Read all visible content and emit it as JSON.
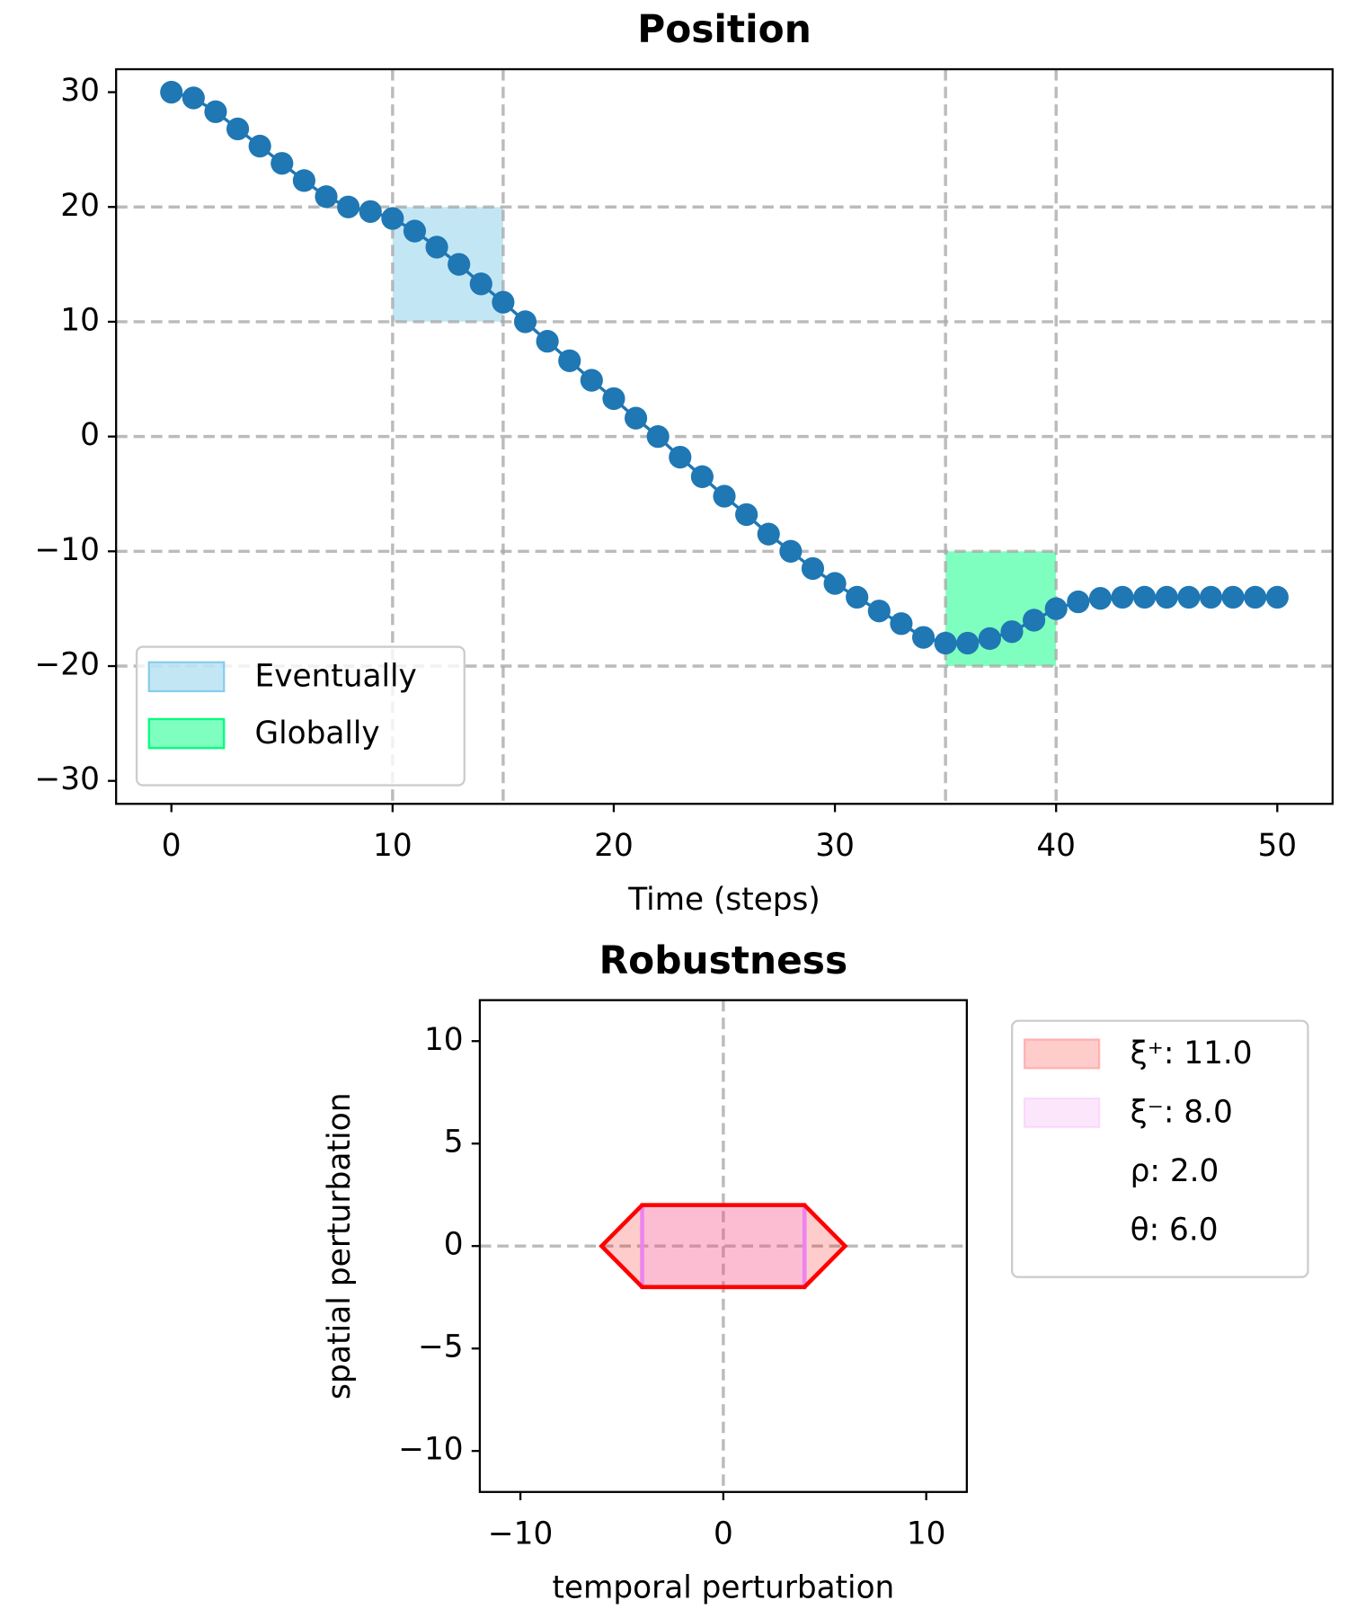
{
  "chart_data": [
    {
      "type": "line",
      "title": "Position",
      "xlabel": "Time (steps)",
      "x": [
        0,
        1,
        2,
        3,
        4,
        5,
        6,
        7,
        8,
        9,
        10,
        11,
        12,
        13,
        14,
        15,
        16,
        17,
        18,
        19,
        20,
        21,
        22,
        23,
        24,
        25,
        26,
        27,
        28,
        29,
        30,
        31,
        32,
        33,
        34,
        35,
        36,
        37,
        38,
        39,
        40,
        41,
        42,
        43,
        44,
        45,
        46,
        47,
        48,
        49,
        50
      ],
      "series": [
        {
          "color": "#1f77b4",
          "values": [
            30,
            29.5,
            28.3,
            26.8,
            25.3,
            23.8,
            22.3,
            20.9,
            20.0,
            19.6,
            19.0,
            17.9,
            16.5,
            15.0,
            13.3,
            11.7,
            10.0,
            8.3,
            6.6,
            4.9,
            3.3,
            1.6,
            0.0,
            -1.8,
            -3.5,
            -5.2,
            -6.8,
            -8.5,
            -10.0,
            -11.5,
            -12.8,
            -14.0,
            -15.2,
            -16.3,
            -17.5,
            -18.0,
            -18.0,
            -17.6,
            -17.0,
            -16.0,
            -15.0,
            -14.4,
            -14.1,
            -14.0,
            -14.0,
            -14.0,
            -14.0,
            -14.0,
            -14.0,
            -14.0,
            -14.0
          ]
        }
      ],
      "regions": [
        {
          "name": "Eventually",
          "color": "#87ceeb",
          "x": [
            10,
            15
          ],
          "y": [
            10,
            20
          ]
        },
        {
          "name": "Globally",
          "color": "#00ff7f",
          "x": [
            35,
            40
          ],
          "y": [
            -20,
            -10
          ]
        }
      ],
      "vlines": [
        10,
        15,
        35,
        40
      ],
      "hlines": [
        -20,
        -10,
        0,
        10,
        20
      ],
      "xlim": [
        -2.5,
        52.5
      ],
      "ylim": [
        -32,
        32
      ],
      "xticks": [
        0,
        10,
        20,
        30,
        40,
        50
      ],
      "yticks": [
        {
          "value": -30,
          "label": "−30"
        },
        {
          "value": -20,
          "label": "−20"
        },
        {
          "value": -10,
          "label": "−10"
        },
        0,
        10,
        20,
        30
      ],
      "legend": "lower left"
    },
    {
      "type": "polygon",
      "title": "Robustness",
      "xlabel": "temporal perturbation",
      "ylabel": "spatial perturbation",
      "series": [
        {
          "name": "ξ⁺: 11.0",
          "color": "#ff0000",
          "x": [
            -6,
            -4,
            4,
            6,
            4,
            -4
          ],
          "y": [
            0,
            2,
            2,
            0,
            -2,
            -2
          ]
        },
        {
          "name": "ξ⁻: 8.0",
          "color": "#ee82ee",
          "x": [
            -4,
            4,
            4,
            -4
          ],
          "y": [
            2,
            2,
            -2,
            -2
          ]
        }
      ],
      "legend_extra": [
        "ρ: 2.0",
        "θ: 6.0"
      ],
      "vlines": [
        0
      ],
      "hlines": [
        0
      ],
      "xlim": [
        -12,
        12
      ],
      "ylim": [
        -12,
        12
      ],
      "xticks": [
        {
          "value": -10,
          "label": "−10"
        },
        0,
        10
      ],
      "yticks": [
        {
          "value": -10,
          "label": "−10"
        },
        {
          "value": -5,
          "label": "−5"
        },
        0,
        5,
        10
      ],
      "legend": "outside right"
    }
  ]
}
